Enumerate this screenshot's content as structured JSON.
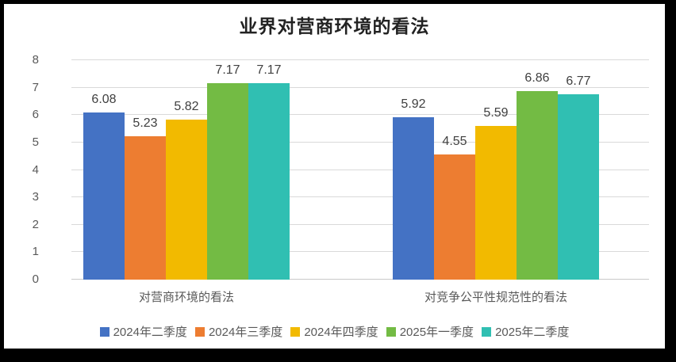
{
  "chart_data": {
    "type": "bar",
    "title": "业界对营商环境的看法",
    "categories": [
      "对营商环境的看法",
      "对竞争公平性规范性的看法"
    ],
    "series": [
      {
        "name": "2024年二季度",
        "color": "#4472C4",
        "values": [
          6.08,
          5.92
        ]
      },
      {
        "name": "2024年三季度",
        "color": "#ED7D31",
        "values": [
          5.23,
          4.55
        ]
      },
      {
        "name": "2024年四季度",
        "color": "#F2BA00",
        "values": [
          5.82,
          5.59
        ]
      },
      {
        "name": "2025年一季度",
        "color": "#73BB44",
        "values": [
          7.17,
          6.86
        ]
      },
      {
        "name": "2025年二季度",
        "color": "#30BFB2",
        "values": [
          7.17,
          6.77
        ]
      }
    ],
    "ylim": [
      0,
      8
    ],
    "yticks": [
      0,
      1,
      2,
      3,
      4,
      5,
      6,
      7,
      8
    ],
    "grid": true,
    "legend_position": "bottom",
    "value_label_format": "0.00"
  },
  "frame": {
    "background_color": "#000000",
    "panel_color": "#FFFFFF",
    "gridline_color": "#D9D9D9",
    "axis_text_color": "#595959",
    "value_label_color": "#404040",
    "title_color": "#222222"
  }
}
